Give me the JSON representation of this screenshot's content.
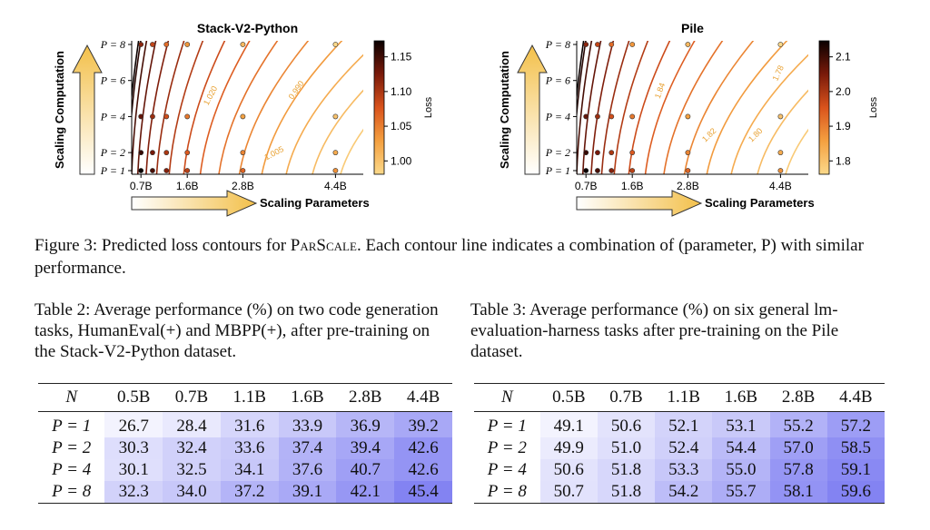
{
  "figure": {
    "caption_label": "Figure 3:",
    "caption_text_pre": "Predicted loss contours for ",
    "caption_method": "ParScale",
    "caption_text_post": ". Each contour line indicates a combination of (parameter, P) with similar performance.",
    "panels": [
      {
        "title": "Stack-V2-Python",
        "xlabel": "Scaling Parameters",
        "ylabel": "Scaling Computation",
        "colorbar_label": "Loss",
        "colorbar_ticks": [
          "1.15",
          "1.10",
          "1.05",
          "1.00"
        ],
        "x_ticks": [
          "0.7B",
          "1.6B",
          "2.8B",
          "4.4B"
        ],
        "y_ticks": [
          "P = 8",
          "P = 6",
          "P = 4",
          "P = 2",
          "P = 1"
        ],
        "contour_labels": [
          "1.020",
          "0.990",
          "1.005"
        ]
      },
      {
        "title": "Pile",
        "xlabel": "Scaling Parameters",
        "ylabel": "Scaling Computation",
        "colorbar_label": "Loss",
        "colorbar_ticks": [
          "2.1",
          "2.0",
          "1.9",
          "1.8"
        ],
        "x_ticks": [
          "0.7B",
          "1.6B",
          "2.8B",
          "4.4B"
        ],
        "y_ticks": [
          "P = 8",
          "P = 6",
          "P = 4",
          "P = 2",
          "P = 1"
        ],
        "contour_labels": [
          "1.84",
          "1.78",
          "1.82",
          "1.80"
        ]
      }
    ]
  },
  "table2": {
    "caption": "Table 2: Average performance (%) on two code generation tasks, HumanEval(+) and MBPP(+), after pre-training on the Stack-V2-Python dataset.",
    "header_n": "N",
    "columns": [
      "0.5B",
      "0.7B",
      "1.1B",
      "1.6B",
      "2.8B",
      "4.4B"
    ],
    "rows": [
      {
        "label": "P = 1",
        "values": [
          "26.7",
          "28.4",
          "31.6",
          "33.9",
          "36.9",
          "39.2"
        ]
      },
      {
        "label": "P = 2",
        "values": [
          "30.3",
          "32.4",
          "33.6",
          "37.4",
          "39.4",
          "42.6"
        ]
      },
      {
        "label": "P = 4",
        "values": [
          "30.1",
          "32.5",
          "34.1",
          "37.6",
          "40.7",
          "42.6"
        ]
      },
      {
        "label": "P = 8",
        "values": [
          "32.3",
          "34.0",
          "37.2",
          "39.1",
          "42.1",
          "45.4"
        ]
      }
    ]
  },
  "table3": {
    "caption": "Table 3: Average performance (%) on six general lm-evaluation-harness tasks after pre-training on the Pile dataset.",
    "header_n": "N",
    "columns": [
      "0.5B",
      "0.7B",
      "1.1B",
      "1.6B",
      "2.8B",
      "4.4B"
    ],
    "rows": [
      {
        "label": "P = 1",
        "values": [
          "49.1",
          "50.6",
          "52.1",
          "53.1",
          "55.2",
          "57.2"
        ]
      },
      {
        "label": "P = 2",
        "values": [
          "49.9",
          "51.0",
          "52.4",
          "54.4",
          "57.0",
          "58.5"
        ]
      },
      {
        "label": "P = 4",
        "values": [
          "50.6",
          "51.8",
          "53.3",
          "55.0",
          "57.8",
          "59.1"
        ]
      },
      {
        "label": "P = 8",
        "values": [
          "50.7",
          "51.8",
          "54.2",
          "55.7",
          "58.1",
          "59.6"
        ]
      }
    ]
  },
  "colors": {
    "arrow_fill": "#f5c857",
    "heat_low": "#ffffff",
    "heat_high": "#6f6ff0"
  }
}
